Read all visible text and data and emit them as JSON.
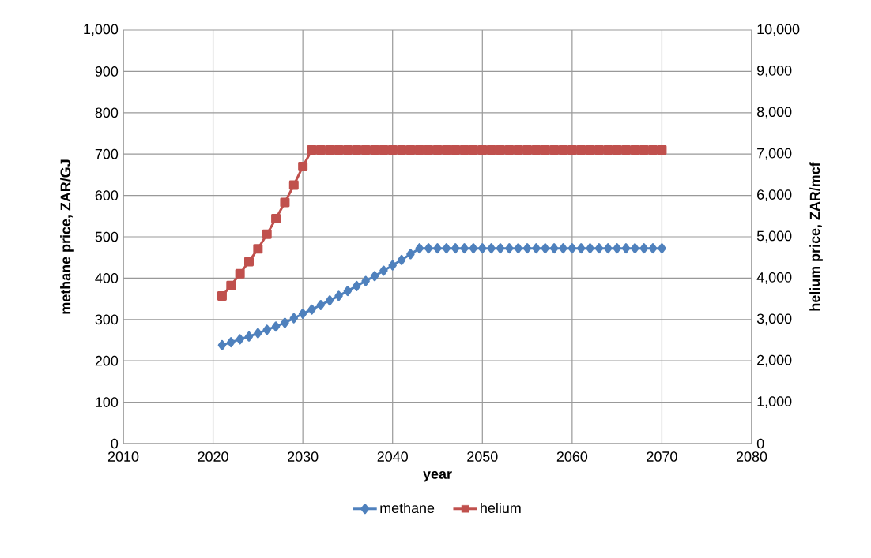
{
  "chart_data": {
    "type": "line",
    "xlabel": "year",
    "ylabel": "methane price, ZAR/GJ",
    "y2label": "helium price, ZAR/mcf",
    "x": [
      2021,
      2022,
      2023,
      2024,
      2025,
      2026,
      2027,
      2028,
      2029,
      2030,
      2031,
      2032,
      2033,
      2034,
      2035,
      2036,
      2037,
      2038,
      2039,
      2040,
      2041,
      2042,
      2043,
      2044,
      2045,
      2046,
      2047,
      2048,
      2049,
      2050,
      2051,
      2052,
      2053,
      2054,
      2055,
      2056,
      2057,
      2058,
      2059,
      2060,
      2061,
      2062,
      2063,
      2064,
      2065,
      2066,
      2067,
      2068,
      2069,
      2070
    ],
    "series": [
      {
        "name": "methane",
        "color": "#4f81bd",
        "marker": "diamond",
        "values": [
          238,
          245,
          252,
          259,
          267,
          275,
          283,
          292,
          303,
          314,
          324,
          335,
          346,
          357,
          369,
          381,
          393,
          405,
          418,
          431,
          444,
          458,
          472,
          472,
          472,
          472,
          472,
          472,
          472,
          472,
          472,
          472,
          472,
          472,
          472,
          472,
          472,
          472,
          472,
          472,
          472,
          472,
          472,
          472,
          472,
          472,
          472,
          472,
          472,
          472
        ]
      },
      {
        "name": "helium",
        "color": "#c0504d",
        "marker": "square",
        "axis": "y2",
        "values": [
          3570,
          3820,
          4110,
          4400,
          4710,
          5060,
          5440,
          5830,
          6250,
          6700,
          7100,
          7100,
          7100,
          7100,
          7100,
          7100,
          7100,
          7100,
          7100,
          7100,
          7100,
          7100,
          7100,
          7100,
          7100,
          7100,
          7100,
          7100,
          7100,
          7100,
          7100,
          7100,
          7100,
          7100,
          7100,
          7100,
          7100,
          7100,
          7100,
          7100,
          7100,
          7100,
          7100,
          7100,
          7100,
          7100,
          7100,
          7100,
          7100,
          7100
        ]
      }
    ],
    "xlim": [
      2010,
      2080
    ],
    "xticks": [
      {
        "value": 2010,
        "label": "2010"
      },
      {
        "value": 2020,
        "label": "2020"
      },
      {
        "value": 2030,
        "label": "2030"
      },
      {
        "value": 2040,
        "label": "2040"
      },
      {
        "value": 2050,
        "label": "2050"
      },
      {
        "value": 2060,
        "label": "2060"
      },
      {
        "value": 2070,
        "label": "2070"
      },
      {
        "value": 2080,
        "label": "2080"
      }
    ],
    "ylim": [
      0,
      1000
    ],
    "yticks": [
      0,
      100,
      200,
      300,
      400,
      500,
      600,
      700,
      800,
      900,
      {
        "value": 1000,
        "label": "1,000"
      }
    ],
    "y2lim": [
      0,
      10000
    ],
    "y2ticks": [
      0,
      {
        "value": 1000,
        "label": "1,000"
      },
      {
        "value": 2000,
        "label": "2,000"
      },
      {
        "value": 3000,
        "label": "3,000"
      },
      {
        "value": 4000,
        "label": "4,000"
      },
      {
        "value": 5000,
        "label": "5,000"
      },
      {
        "value": 6000,
        "label": "6,000"
      },
      {
        "value": 7000,
        "label": "7,000"
      },
      {
        "value": 8000,
        "label": "8,000"
      },
      {
        "value": 9000,
        "label": "9,000"
      },
      {
        "value": 10000,
        "label": "10,000"
      }
    ],
    "grid": true,
    "legend": "bottom",
    "line_style": "solid"
  }
}
